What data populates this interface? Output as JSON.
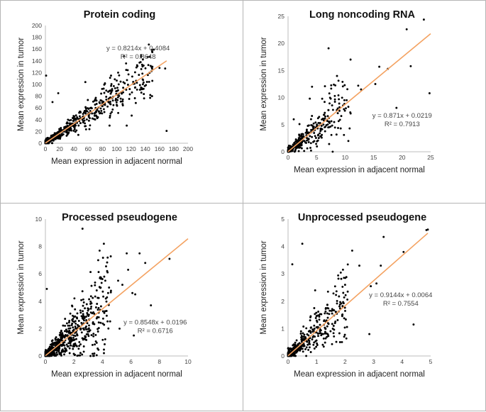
{
  "chart_data": [
    {
      "type": "scatter",
      "title": "Protein coding",
      "xlabel": "Mean expression in adjacent normal",
      "ylabel": "Mean expression in tumor",
      "xlim": [
        0,
        200
      ],
      "ylim": [
        0,
        200
      ],
      "xticks": [
        "0",
        "20",
        "40",
        "60",
        "80",
        "100",
        "120",
        "140",
        "160",
        "180",
        "200"
      ],
      "yticks": [
        "0",
        "20",
        "40",
        "60",
        "80",
        "100",
        "120",
        "140",
        "160",
        "180",
        "200"
      ],
      "fit": {
        "slope": 0.8214,
        "intercept": 0.4084,
        "x_range": [
          0,
          170
        ]
      },
      "equation": "y = 0.8214x + 0.4084",
      "r2": "R² = 0.8648",
      "annotation_anchor": [
        130,
        158
      ],
      "outliers": [
        [
          170,
          21
        ],
        [
          152,
          159
        ],
        [
          146,
          147
        ],
        [
          160,
          128
        ],
        [
          132,
          137
        ],
        [
          102,
          120
        ],
        [
          56,
          104
        ],
        [
          92,
          115
        ],
        [
          1,
          115
        ],
        [
          126,
          95
        ],
        [
          121,
          47
        ],
        [
          168,
          127
        ],
        [
          150,
          130
        ],
        [
          18,
          85
        ],
        [
          10,
          70
        ],
        [
          114,
          30
        ],
        [
          90,
          30
        ],
        [
          80,
          63
        ],
        [
          70,
          52
        ]
      ],
      "cloud": {
        "n": 650,
        "max": 150,
        "noise": 0.22,
        "abs_noise": 2.5,
        "seed": 11
      }
    },
    {
      "type": "scatter",
      "title": "Long noncoding RNA",
      "xlabel": "Mean expression in adjacent normal",
      "ylabel": "Mean expression in tumor",
      "xlim": [
        0,
        25
      ],
      "ylim": [
        0,
        25
      ],
      "xticks": [
        "0",
        "5",
        "10",
        "15",
        "20",
        "25"
      ],
      "yticks": [
        "0",
        "5",
        "10",
        "15",
        "20",
        "25"
      ],
      "fit": {
        "slope": 0.871,
        "intercept": 0.0219,
        "x_range": [
          0,
          25
        ]
      },
      "equation": "y = 0.871x + 0.0219",
      "r2": "R² = 0.7913",
      "annotation_anchor": [
        20.0,
        6.3
      ],
      "outliers": [
        [
          7.1,
          19.1
        ],
        [
          20.8,
          22.6
        ],
        [
          23.8,
          24.4
        ],
        [
          21.5,
          15.8
        ],
        [
          24.8,
          10.8
        ],
        [
          16.0,
          15.7
        ],
        [
          17.5,
          15.3
        ],
        [
          19.0,
          8.1
        ],
        [
          15.3,
          12.5
        ],
        [
          12.3,
          12.2
        ],
        [
          10.8,
          4.3
        ],
        [
          9.8,
          3.1
        ],
        [
          8.2,
          10.3
        ],
        [
          6.4,
          9.2
        ],
        [
          3.8,
          9.8
        ],
        [
          4.2,
          12.0
        ],
        [
          12.8,
          11.5
        ],
        [
          1.0,
          6.0
        ],
        [
          2.0,
          5.1
        ]
      ],
      "cloud": {
        "n": 360,
        "max": 11,
        "noise": 0.35,
        "abs_noise": 0.4,
        "seed": 23
      }
    },
    {
      "type": "scatter",
      "title": "Processed pseudogene",
      "xlabel": "Mean expression in adjacent normal",
      "ylabel": "Mean expression in tumor",
      "xlim": [
        0,
        10
      ],
      "ylim": [
        0,
        10
      ],
      "xticks": [
        "0",
        "2",
        "4",
        "6",
        "8",
        "10"
      ],
      "yticks": [
        "0",
        "2",
        "4",
        "6",
        "8",
        "10"
      ],
      "fit": {
        "slope": 0.8548,
        "intercept": 0.0196,
        "x_range": [
          0,
          10
        ]
      },
      "equation": "y = 0.8548x + 0.0196",
      "r2": "R² = 0.6716",
      "annotation_anchor": [
        7.7,
        2.3
      ],
      "outliers": [
        [
          2.6,
          9.3
        ],
        [
          4.1,
          8.2
        ],
        [
          3.8,
          7.7
        ],
        [
          5.7,
          7.5
        ],
        [
          6.6,
          7.5
        ],
        [
          3.7,
          7.0
        ],
        [
          7.0,
          6.8
        ],
        [
          5.8,
          6.3
        ],
        [
          8.7,
          7.1
        ],
        [
          5.1,
          5.5
        ],
        [
          4.2,
          5.5
        ],
        [
          5.4,
          5.2
        ],
        [
          6.1,
          4.6
        ],
        [
          6.3,
          4.5
        ],
        [
          7.4,
          3.7
        ],
        [
          6.2,
          1.5
        ],
        [
          0.1,
          4.9
        ],
        [
          4.4,
          4.6
        ],
        [
          5.2,
          2.0
        ]
      ],
      "cloud": {
        "n": 720,
        "max": 4.6,
        "noise": 0.5,
        "abs_noise": 0.15,
        "seed": 37
      }
    },
    {
      "type": "scatter",
      "title": "Unprocessed pseudogene",
      "xlabel": "Mean expression in adjacent normal",
      "ylabel": "Mean expression in tumor",
      "xlim": [
        0,
        5
      ],
      "ylim": [
        0,
        5
      ],
      "xticks": [
        "0",
        "1",
        "2",
        "3",
        "4",
        "5"
      ],
      "yticks": [
        "0",
        "1",
        "2",
        "3",
        "4",
        "5"
      ],
      "fit": {
        "slope": 0.9144,
        "intercept": 0.0064,
        "x_range": [
          0,
          4.9
        ]
      },
      "equation": "y = 0.9144x + 0.0064",
      "r2": "R² = 0.7554",
      "annotation_anchor": [
        3.95,
        2.15
      ],
      "outliers": [
        [
          4.85,
          4.6
        ],
        [
          4.9,
          4.62
        ],
        [
          0.5,
          4.1
        ],
        [
          3.35,
          4.35
        ],
        [
          2.25,
          3.85
        ],
        [
          4.05,
          3.8
        ],
        [
          0.15,
          3.35
        ],
        [
          2.5,
          3.3
        ],
        [
          3.25,
          3.3
        ],
        [
          1.4,
          2.35
        ],
        [
          0.95,
          2.4
        ],
        [
          2.0,
          2.6
        ],
        [
          2.9,
          2.55
        ],
        [
          3.1,
          2.65
        ],
        [
          4.4,
          1.15
        ],
        [
          2.85,
          0.8
        ],
        [
          1.9,
          1.5
        ],
        [
          1.6,
          1.1
        ]
      ],
      "cloud": {
        "n": 420,
        "max": 2.1,
        "noise": 0.4,
        "abs_noise": 0.1,
        "seed": 53
      }
    }
  ]
}
